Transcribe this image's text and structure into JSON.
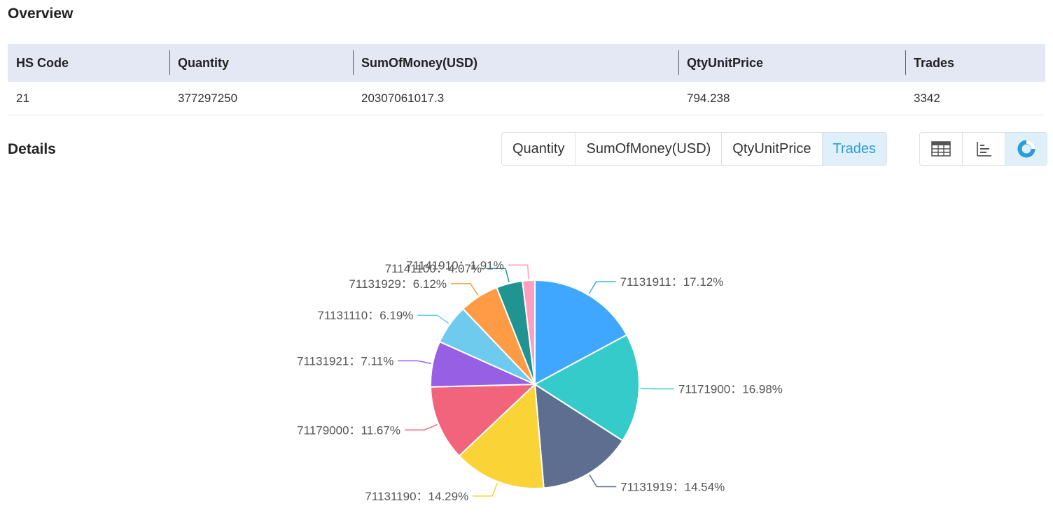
{
  "overview": {
    "title": "Overview",
    "columns": [
      "HS Code",
      "Quantity",
      "SumOfMoney(USD)",
      "QtyUnitPrice",
      "Trades"
    ],
    "row": [
      "21",
      "377297250",
      "20307061017.3",
      "794.238",
      "3342"
    ]
  },
  "details": {
    "title": "Details",
    "metric_tabs": [
      "Quantity",
      "SumOfMoney(USD)",
      "QtyUnitPrice",
      "Trades"
    ],
    "active_metric": "Trades",
    "views": [
      {
        "name": "table-view",
        "icon": "table-icon"
      },
      {
        "name": "bar-view",
        "icon": "bar-chart-icon"
      },
      {
        "name": "pie-view",
        "icon": "pie-chart-icon",
        "active": true
      }
    ],
    "accent_color": "#2d9cdb"
  },
  "chart_data": {
    "type": "pie",
    "title": "",
    "slices": [
      {
        "label": "71131911",
        "value": 17.12,
        "color": "#3fa7ff"
      },
      {
        "label": "71171900",
        "value": 16.98,
        "color": "#36cbcb"
      },
      {
        "label": "71131919",
        "value": 14.54,
        "color": "#5d6e91"
      },
      {
        "label": "71131190",
        "value": 14.29,
        "color": "#fad337"
      },
      {
        "label": "71179000",
        "value": 11.67,
        "color": "#f2647c"
      },
      {
        "label": "71131921",
        "value": 7.11,
        "color": "#975fe4"
      },
      {
        "label": "71131110",
        "value": 6.19,
        "color": "#6ecbed"
      },
      {
        "label": "71131929",
        "value": 6.12,
        "color": "#ff9a45"
      },
      {
        "label": "71141100",
        "value": 4.07,
        "color": "#1f9491"
      },
      {
        "label": "71141910",
        "value": 1.91,
        "color": "#ff9ec0"
      }
    ],
    "label_format": "{label}：{value}%"
  }
}
